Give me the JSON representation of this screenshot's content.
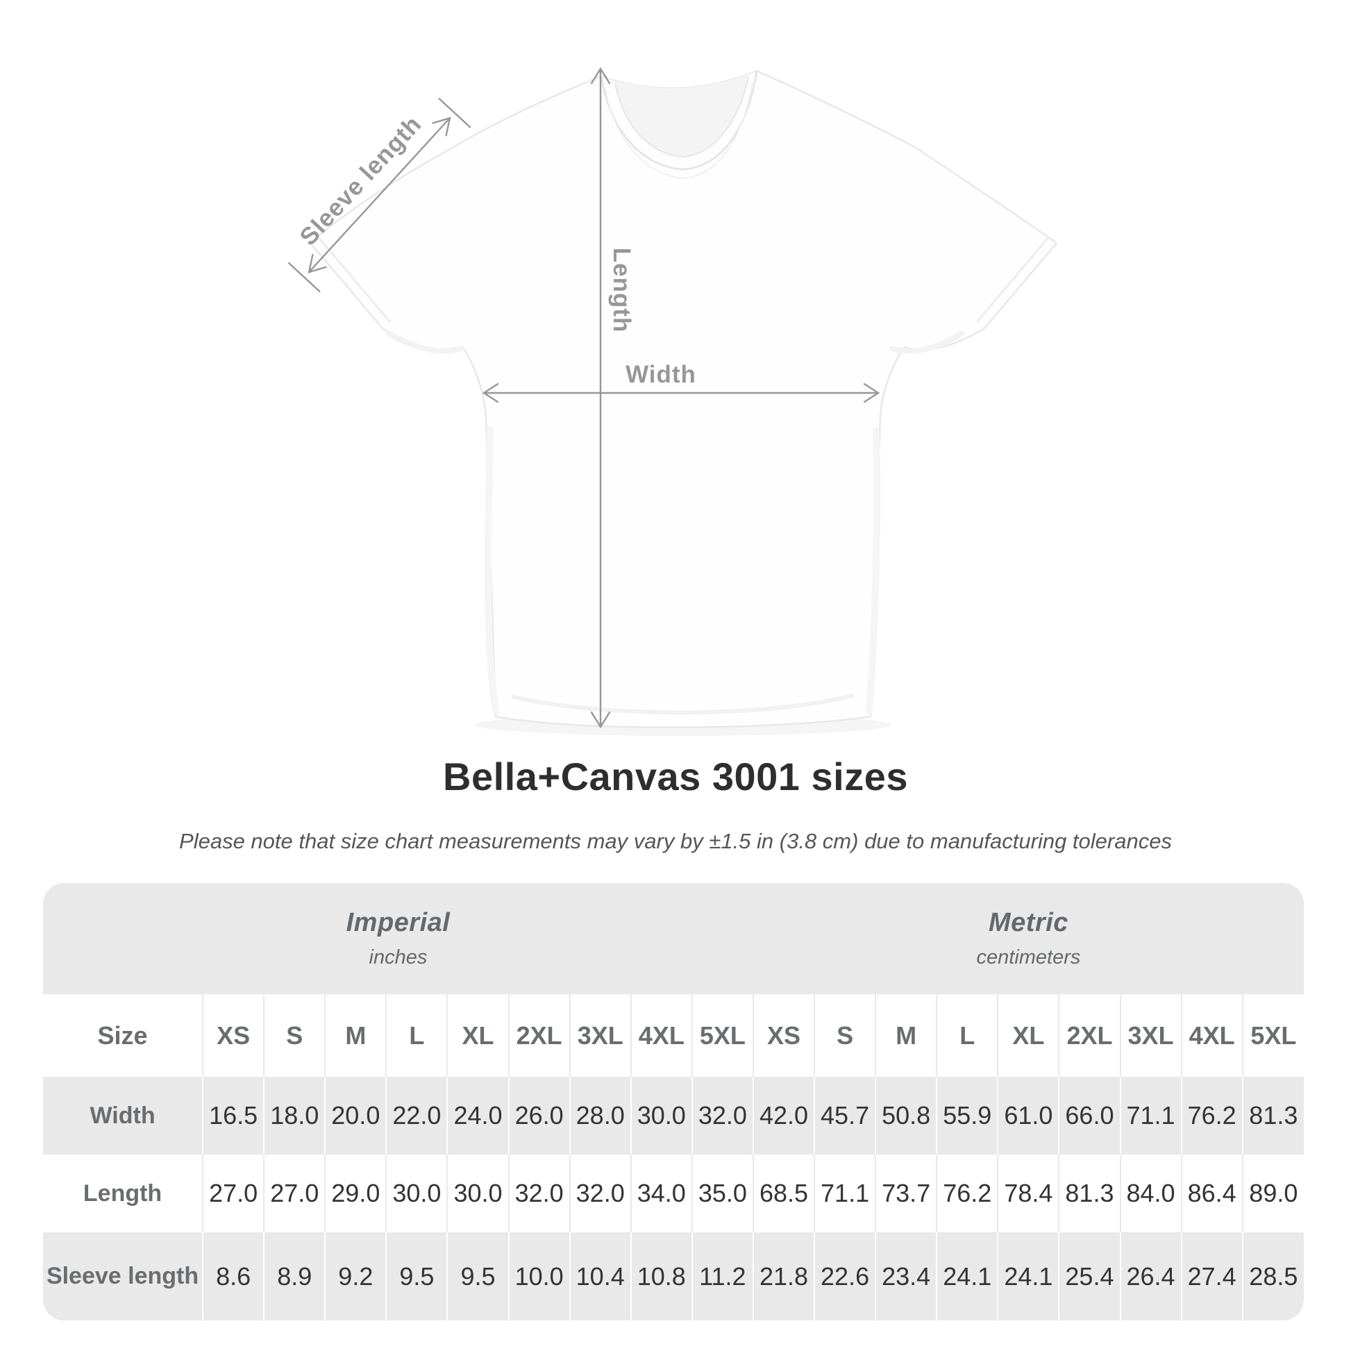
{
  "title": "Bella+Canvas 3001 sizes",
  "subtitle": "Please note that size chart measurements may vary by ±1.5 in (3.8 cm) due to manufacturing tolerances",
  "diagram": {
    "sleeve_length_label": "Sleeve length",
    "length_label": "Length",
    "width_label": "Width"
  },
  "size_table": {
    "corner_label": "Size",
    "groups": [
      {
        "name": "Imperial",
        "unit": "inches"
      },
      {
        "name": "Metric",
        "unit": "centimeters"
      }
    ],
    "sizes": [
      "XS",
      "S",
      "M",
      "L",
      "XL",
      "2XL",
      "3XL",
      "4XL",
      "5XL"
    ],
    "rows": [
      {
        "label": "Width",
        "imperial": [
          "16.5",
          "18.0",
          "20.0",
          "22.0",
          "24.0",
          "26.0",
          "28.0",
          "30.0",
          "32.0"
        ],
        "metric": [
          "42.0",
          "45.7",
          "50.8",
          "55.9",
          "61.0",
          "66.0",
          "71.1",
          "76.2",
          "81.3"
        ]
      },
      {
        "label": "Length",
        "imperial": [
          "27.0",
          "27.0",
          "29.0",
          "30.0",
          "30.0",
          "32.0",
          "32.0",
          "34.0",
          "35.0"
        ],
        "metric": [
          "68.5",
          "71.1",
          "73.7",
          "76.2",
          "78.4",
          "81.3",
          "84.0",
          "86.4",
          "89.0"
        ]
      },
      {
        "label": "Sleeve length",
        "imperial": [
          "8.6",
          "8.9",
          "9.2",
          "9.5",
          "9.5",
          "10.0",
          "10.4",
          "10.8",
          "11.2"
        ],
        "metric": [
          "21.8",
          "22.6",
          "23.4",
          "24.1",
          "24.1",
          "25.4",
          "26.4",
          "27.4",
          "28.5"
        ]
      }
    ]
  },
  "colors": {
    "annotation_gray": "#979797",
    "table_background": "#e9e9e9",
    "header_text": "#696d70",
    "data_text": "#333333"
  },
  "chart_data": {
    "type": "table",
    "title": "Bella+Canvas 3001 sizes",
    "note": "Please note that size chart measurements may vary by ±1.5 in (3.8 cm) due to manufacturing tolerances",
    "column_groups": [
      "Imperial (inches)",
      "Metric (centimeters)"
    ],
    "sizes": [
      "XS",
      "S",
      "M",
      "L",
      "XL",
      "2XL",
      "3XL",
      "4XL",
      "5XL"
    ],
    "measurements": [
      {
        "label": "Width",
        "imperial_inches": [
          16.5,
          18.0,
          20.0,
          22.0,
          24.0,
          26.0,
          28.0,
          30.0,
          32.0
        ],
        "metric_cm": [
          42.0,
          45.7,
          50.8,
          55.9,
          61.0,
          66.0,
          71.1,
          76.2,
          81.3
        ]
      },
      {
        "label": "Length",
        "imperial_inches": [
          27.0,
          27.0,
          29.0,
          30.0,
          30.0,
          32.0,
          32.0,
          34.0,
          35.0
        ],
        "metric_cm": [
          68.5,
          71.1,
          73.7,
          76.2,
          78.4,
          81.3,
          84.0,
          86.4,
          89.0
        ]
      },
      {
        "label": "Sleeve length",
        "imperial_inches": [
          8.6,
          8.9,
          9.2,
          9.5,
          9.5,
          10.0,
          10.4,
          10.8,
          11.2
        ],
        "metric_cm": [
          21.8,
          22.6,
          23.4,
          24.1,
          24.1,
          25.4,
          26.4,
          27.4,
          28.5
        ]
      }
    ]
  }
}
